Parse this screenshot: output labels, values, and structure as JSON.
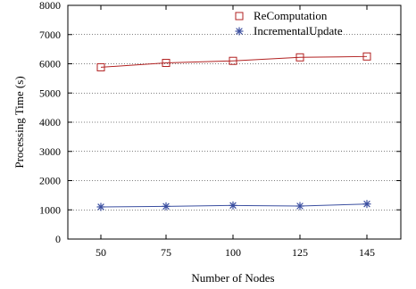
{
  "chart_data": {
    "type": "line",
    "xlabel": "Number of Nodes",
    "ylabel": "Processing Time (s)",
    "categories": [
      "50",
      "75",
      "100",
      "125",
      "145"
    ],
    "x": [
      50,
      75,
      100,
      125,
      145
    ],
    "ylim": [
      0,
      8000
    ],
    "yticks": [
      0,
      1000,
      2000,
      3000,
      4000,
      5000,
      6000,
      7000,
      8000
    ],
    "grid": "horizontal dotted",
    "legend_position": "top-right",
    "series": [
      {
        "name": "ReComputation",
        "marker": "open-square",
        "color": "#b22222",
        "values": [
          5880,
          6030,
          6100,
          6220,
          6250
        ]
      },
      {
        "name": "IncrementalUpdate",
        "marker": "asterisk",
        "color": "#3b4fa0",
        "values": [
          1100,
          1120,
          1150,
          1130,
          1200
        ]
      }
    ]
  }
}
